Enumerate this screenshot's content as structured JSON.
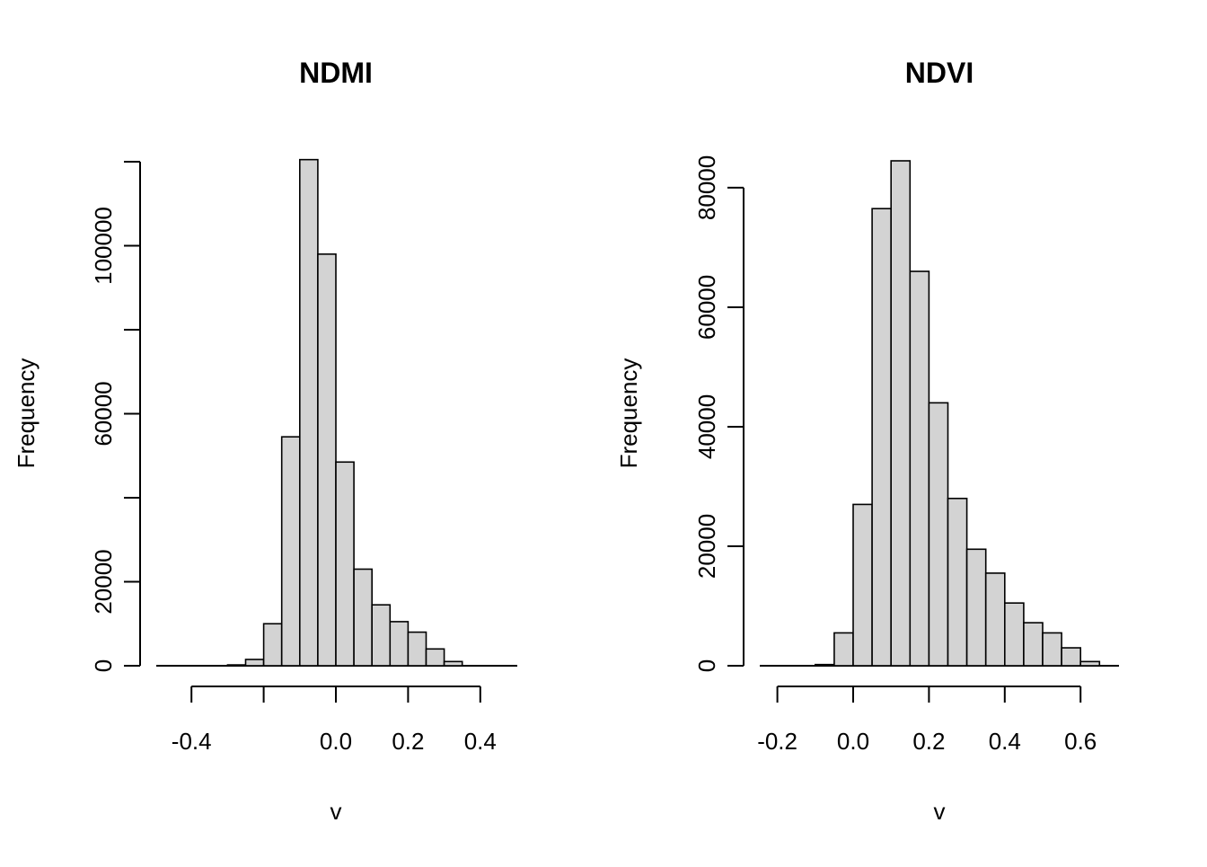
{
  "colors": {
    "bar_fill": "#d3d3d3",
    "bar_stroke": "#000000",
    "axis": "#000000",
    "background": "#ffffff"
  },
  "chart_data": [
    {
      "type": "bar",
      "title": "NDMI",
      "xlabel": "v",
      "ylabel": "Frequency",
      "bin_width": 0.05,
      "bin_edges": [
        -0.5,
        -0.45,
        -0.4,
        -0.35,
        -0.3,
        -0.25,
        -0.2,
        -0.15,
        -0.1,
        -0.05,
        0.0,
        0.05,
        0.1,
        0.15,
        0.2,
        0.25,
        0.3,
        0.35,
        0.4,
        0.45,
        0.5
      ],
      "values": [
        0,
        0,
        0,
        0,
        200,
        1500,
        10000,
        54500,
        120500,
        98000,
        48500,
        23000,
        14500,
        10500,
        8000,
        4000,
        1000,
        0,
        0,
        0
      ],
      "xlim": [
        -0.5,
        0.5
      ],
      "ylim": [
        0,
        120000
      ],
      "x_ticks": [
        -0.4,
        -0.2,
        0.0,
        0.2,
        0.4
      ],
      "x_tick_labels": [
        "-0.4",
        "",
        "0.0",
        "0.2",
        "0.4"
      ],
      "y_ticks": [
        0,
        20000,
        40000,
        60000,
        80000,
        100000,
        120000
      ],
      "y_tick_labels": [
        "0",
        "20000",
        "",
        "60000",
        "",
        "100000",
        ""
      ],
      "grid": false,
      "legend": "none"
    },
    {
      "type": "bar",
      "title": "NDVI",
      "xlabel": "v",
      "ylabel": "Frequency",
      "bin_width": 0.05,
      "bin_edges": [
        -0.25,
        -0.2,
        -0.15,
        -0.1,
        -0.05,
        0.0,
        0.05,
        0.1,
        0.15,
        0.2,
        0.25,
        0.3,
        0.35,
        0.4,
        0.45,
        0.5,
        0.55,
        0.6,
        0.65,
        0.7
      ],
      "values": [
        0,
        0,
        0,
        200,
        5500,
        27000,
        76500,
        84500,
        66000,
        44000,
        28000,
        19500,
        15500,
        10500,
        7200,
        5500,
        3000,
        700,
        0
      ],
      "xlim": [
        -0.25,
        0.7
      ],
      "ylim": [
        0,
        84500
      ],
      "x_ticks": [
        -0.2,
        0.0,
        0.2,
        0.4,
        0.6
      ],
      "x_tick_labels": [
        "-0.2",
        "0.0",
        "0.2",
        "0.4",
        "0.6"
      ],
      "y_ticks": [
        0,
        20000,
        40000,
        60000,
        80000
      ],
      "y_tick_labels": [
        "0",
        "20000",
        "40000",
        "60000",
        "80000"
      ],
      "grid": false,
      "legend": "none"
    }
  ]
}
